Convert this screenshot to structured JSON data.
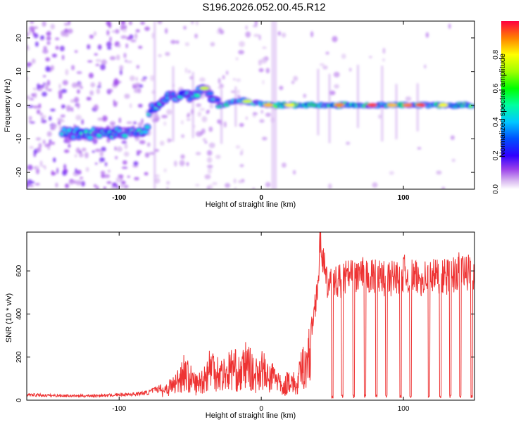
{
  "title": "S196.2026.052.00.45.R12",
  "chart_data": [
    {
      "type": "heatmap",
      "name": "spectrogram",
      "xlabel": "Height of straight line (km)",
      "ylabel": "Frequency (Hz)",
      "xlim": [
        -165,
        150
      ],
      "ylim": [
        -25,
        25
      ],
      "xticks": [
        -100,
        0,
        100
      ],
      "yticks": [
        -20,
        -10,
        0,
        10,
        20
      ],
      "colorbar": {
        "label": "Normalized spectral amplitude",
        "range": [
          0,
          1
        ],
        "ticks": [
          "0.0",
          "0.2",
          "0.4",
          "0.6",
          "0.8"
        ]
      },
      "ridge": {
        "description_points": [
          {
            "x": -135,
            "y": -8.5
          },
          {
            "x": -120,
            "y": -8.5
          },
          {
            "x": -100,
            "y": -8
          },
          {
            "x": -82,
            "y": -8
          },
          {
            "x": -78,
            "y": -2
          },
          {
            "x": -70,
            "y": 2
          },
          {
            "x": -50,
            "y": 2.5
          },
          {
            "x": -40,
            "y": 5
          },
          {
            "x": -30,
            "y": 0
          },
          {
            "x": -15,
            "y": 1.5
          },
          {
            "x": 5,
            "y": 0
          },
          {
            "x": 150,
            "y": 0
          }
        ]
      }
    },
    {
      "type": "line",
      "name": "snr",
      "xlabel": "Height of straight line (km)",
      "ylabel": "SNR (10 * v/v)",
      "xlim": [
        -165,
        150
      ],
      "ylim": [
        0,
        780
      ],
      "xticks": [
        -100,
        0,
        100
      ],
      "yticks": [
        0,
        200,
        400,
        600
      ],
      "series": [
        {
          "name": "SNR",
          "color": "#ee3333",
          "x": [
            -165,
            -150,
            -130,
            -110,
            -90,
            -80,
            -70,
            -60,
            -55,
            -50,
            -45,
            -40,
            -35,
            -30,
            -25,
            -20,
            -15,
            -10,
            -5,
            0,
            5,
            10,
            15,
            20,
            25,
            28,
            32,
            36,
            40,
            42,
            44,
            46,
            50,
            60,
            70,
            80,
            90,
            100,
            110,
            120,
            130,
            140,
            150
          ],
          "y": [
            25,
            22,
            20,
            22,
            28,
            35,
            60,
            110,
            190,
            140,
            100,
            150,
            230,
            180,
            170,
            220,
            160,
            250,
            150,
            220,
            130,
            170,
            60,
            150,
            80,
            200,
            260,
            350,
            560,
            760,
            620,
            540,
            530,
            570,
            580,
            570,
            560,
            590,
            560,
            580,
            570,
            600,
            580
          ]
        }
      ]
    }
  ]
}
